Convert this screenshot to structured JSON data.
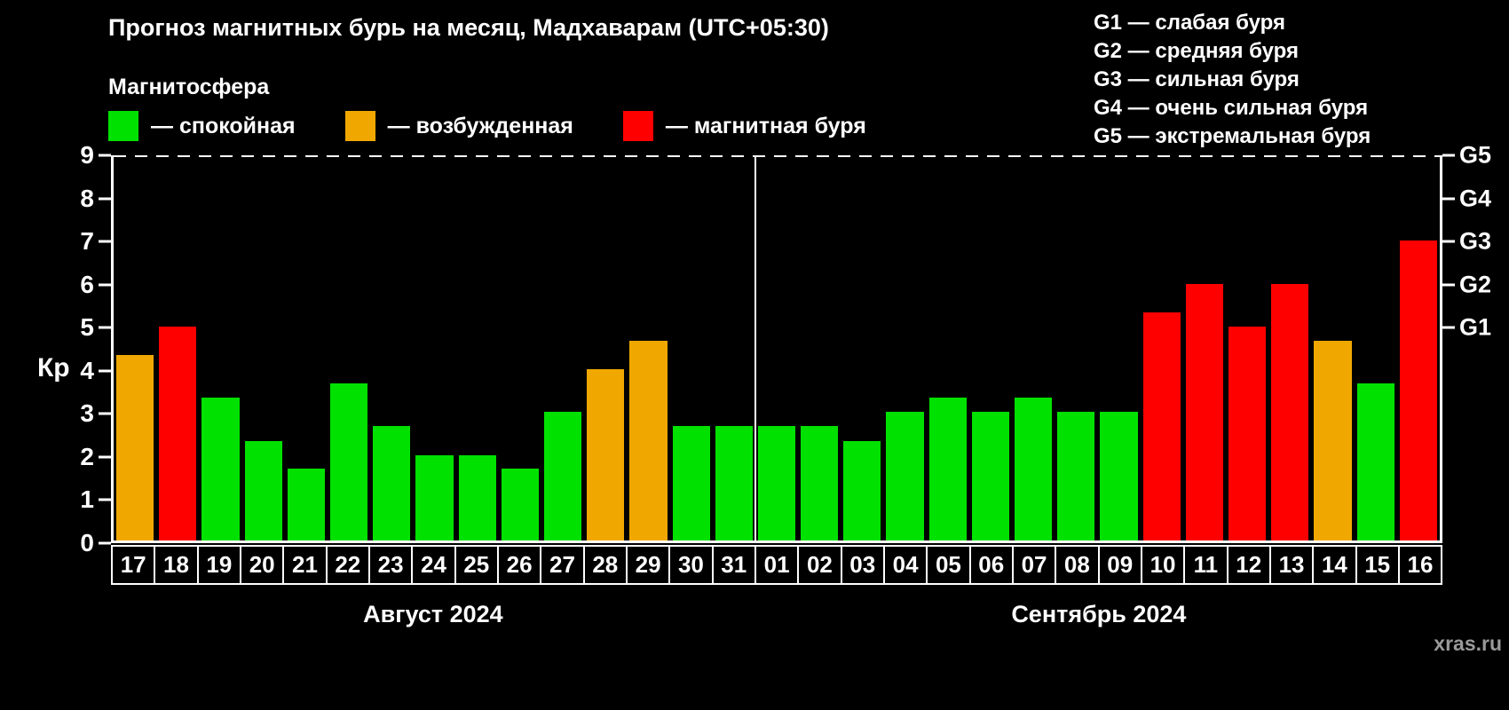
{
  "title": "Прогноз магнитных бурь на месяц, Мадхаварам (UTC+05:30)",
  "legend": {
    "header": "Магнитосфера",
    "items": [
      {
        "key": "quiet",
        "label": "— спокойная",
        "color": "#00e100"
      },
      {
        "key": "excited",
        "label": "— возбужденная",
        "color": "#f0a800"
      },
      {
        "key": "storm",
        "label": "— магнитная буря",
        "color": "#ff0000"
      }
    ]
  },
  "g_legend": [
    "G1 — слабая буря",
    "G2 — средняя буря",
    "G3 — сильная буря",
    "G4 — очень сильная буря",
    "G5 — экстремальная буря"
  ],
  "watermark": "xras.ru",
  "chart_data": {
    "type": "bar",
    "title": "Прогноз магнитных бурь на месяц, Мадхаварам (UTC+05:30)",
    "ylabel": "Кр",
    "ylim": [
      0,
      9
    ],
    "yticks": [
      0,
      1,
      2,
      3,
      4,
      5,
      6,
      7,
      8,
      9
    ],
    "grid": "off",
    "right_axis": [
      {
        "label": "G1",
        "value": 5
      },
      {
        "label": "G2",
        "value": 6
      },
      {
        "label": "G3",
        "value": 7
      },
      {
        "label": "G4",
        "value": 8
      },
      {
        "label": "G5",
        "value": 9
      }
    ],
    "months": [
      {
        "label": "Август 2024",
        "days": 15
      },
      {
        "label": "Сентябрь 2024",
        "days": 16
      }
    ],
    "categories": [
      "17",
      "18",
      "19",
      "20",
      "21",
      "22",
      "23",
      "24",
      "25",
      "26",
      "27",
      "28",
      "29",
      "30",
      "31",
      "01",
      "02",
      "03",
      "04",
      "05",
      "06",
      "07",
      "08",
      "09",
      "10",
      "11",
      "12",
      "13",
      "14",
      "15",
      "16"
    ],
    "values": [
      4.33,
      5,
      3.33,
      2.33,
      1.67,
      3.67,
      2.67,
      2,
      2,
      1.67,
      3,
      4,
      4.67,
      2.67,
      2.67,
      2.67,
      2.67,
      2.33,
      3,
      3.33,
      3,
      3.33,
      3,
      3,
      5.33,
      6,
      5,
      6,
      4.67,
      3.67,
      7
    ],
    "levels": [
      "excited",
      "storm",
      "quiet",
      "quiet",
      "quiet",
      "quiet",
      "quiet",
      "quiet",
      "quiet",
      "quiet",
      "quiet",
      "excited",
      "excited",
      "quiet",
      "quiet",
      "quiet",
      "quiet",
      "quiet",
      "quiet",
      "quiet",
      "quiet",
      "quiet",
      "quiet",
      "quiet",
      "storm",
      "storm",
      "storm",
      "storm",
      "excited",
      "quiet",
      "storm"
    ]
  }
}
